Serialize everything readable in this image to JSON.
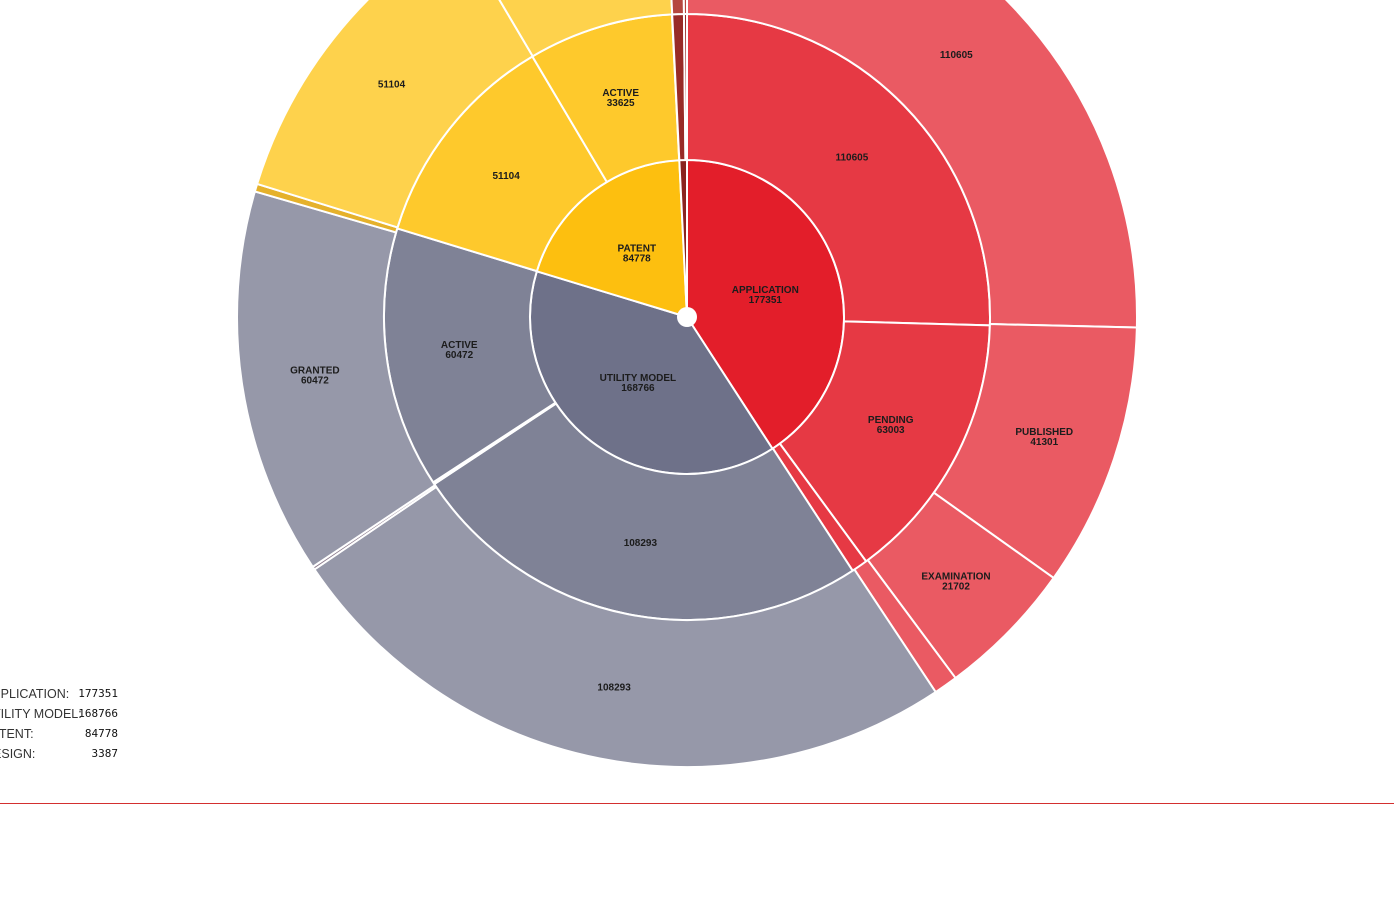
{
  "chart_data": {
    "type": "sunburst",
    "rings": [
      [
        {
          "label": "APPLICATION",
          "value": 177351,
          "color": "#e31e2a"
        },
        {
          "label": "UTILITY MODEL",
          "value": 168766,
          "color": "#6e7189"
        },
        {
          "label": "PATENT",
          "value": 84778,
          "color": "#fdbf0f"
        },
        {
          "label": "",
          "value": 3387,
          "color": "#8b2420"
        }
      ],
      [
        {
          "label": "",
          "value": 110605,
          "color": "#e63944"
        },
        {
          "label": "PENDING",
          "value": 63003,
          "color": "#e63944"
        },
        {
          "label": "",
          "value": 3743,
          "color": "#e63944"
        },
        {
          "label": "",
          "value": 108293,
          "color": "#7f8296"
        },
        {
          "label": "",
          "value": 473,
          "color": "#7f8296"
        },
        {
          "label": "ACTIVE",
          "value": 60472,
          "color": "#7f8296"
        },
        {
          "label": "",
          "value": 51104,
          "color": "#fec92c"
        },
        {
          "label": "ACTIVE",
          "value": 33625,
          "color": "#fec92c"
        },
        {
          "label": "",
          "value": 49,
          "color": "#fec92c"
        },
        {
          "label": "",
          "value": 2690,
          "color": "#982b27"
        },
        {
          "label": "",
          "value": 697,
          "color": "#982b27"
        }
      ],
      [
        {
          "label": "",
          "value": 110605,
          "color": "#ea5a63"
        },
        {
          "label": "PUBLISHED",
          "value": 41301,
          "color": "#ea5a63"
        },
        {
          "label": "EXAMINATION",
          "value": 21702,
          "color": "#ea5a63"
        },
        {
          "label": "",
          "value": 3743,
          "color": "#ea5a63"
        },
        {
          "label": "",
          "value": 108293,
          "color": "#9698a9"
        },
        {
          "label": "",
          "value": 473,
          "color": "#8b7a8c"
        },
        {
          "label": "GRANTED",
          "value": 60472,
          "color": "#9698a9"
        },
        {
          "label": "",
          "value": 1200,
          "color": "#e5b12b"
        },
        {
          "label": "",
          "value": 51104,
          "color": "#fed24c"
        },
        {
          "label": "",
          "value": 33674,
          "color": "#fed24c"
        },
        {
          "label": "",
          "value": 2690,
          "color": "#b5473f"
        },
        {
          "label": "",
          "value": 697,
          "color": "#b5473f"
        }
      ]
    ],
    "legend": [
      {
        "name": "APPLICATION:",
        "value": "177351"
      },
      {
        "name": "UTILITY MODEL:",
        "value": "168766"
      },
      {
        "name": "PATENT:",
        "value": "84778"
      },
      {
        "name": "DESIGN:",
        "value": "3387"
      }
    ]
  }
}
